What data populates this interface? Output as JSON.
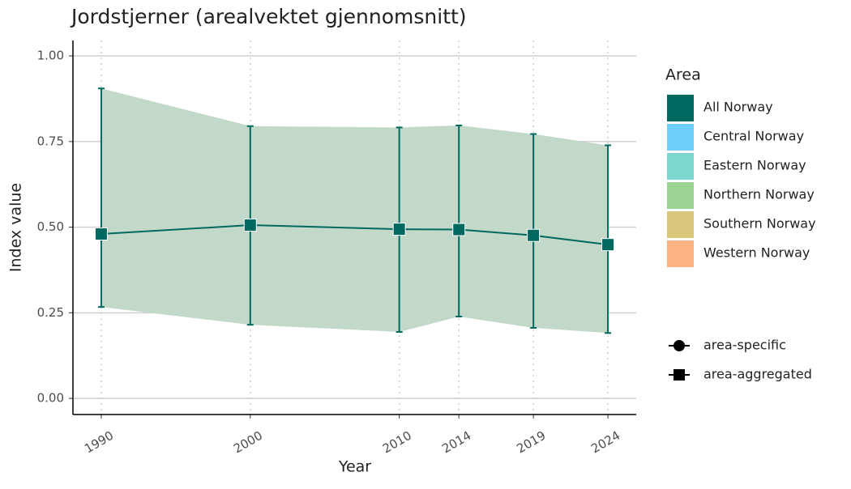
{
  "chart_data": {
    "type": "line",
    "title": "Jordstjerner (arealvektet gjennomsnitt)",
    "x_label": "Year",
    "y_label": "Index value",
    "x": [
      1990,
      2000,
      2010,
      2014,
      2019,
      2024
    ],
    "series": [
      {
        "name": "All Norway",
        "color": "#00695f",
        "band_color": "#c2d8c9",
        "marker": "square",
        "values": [
          0.48,
          0.506,
          0.494,
          0.493,
          0.476,
          0.449
        ],
        "lower": [
          0.267,
          0.215,
          0.194,
          0.239,
          0.206,
          0.191
        ],
        "upper": [
          0.905,
          0.795,
          0.791,
          0.797,
          0.772,
          0.739
        ]
      }
    ],
    "xlim": [
      1988.1,
      2025.9
    ],
    "xticks": [
      1990,
      2000,
      2010,
      2014,
      2019,
      2024
    ],
    "ylim": [
      -0.047,
      1.045
    ],
    "yticks": [
      {
        "value": 0,
        "label": "0.00"
      },
      {
        "value": 0.25,
        "label": "0.25"
      },
      {
        "value": 0.5,
        "label": "0.50"
      },
      {
        "value": 0.75,
        "label": "0.75"
      },
      {
        "value": 1,
        "label": "1.00"
      }
    ],
    "grid": true,
    "legend_title": "Area",
    "other_areas": [
      {
        "name": "Central Norway",
        "color": "#70cefc"
      },
      {
        "name": "Eastern Norway",
        "color": "#7ed7cf"
      },
      {
        "name": "Northern Norway",
        "color": "#9cd495"
      },
      {
        "name": "Southern Norway",
        "color": "#d8c67a"
      },
      {
        "name": "Western Norway",
        "color": "#fdb283"
      }
    ],
    "shape_legend": [
      {
        "label": "area-specific",
        "shape": "circle"
      },
      {
        "label": "area-aggregated",
        "shape": "square"
      }
    ]
  }
}
